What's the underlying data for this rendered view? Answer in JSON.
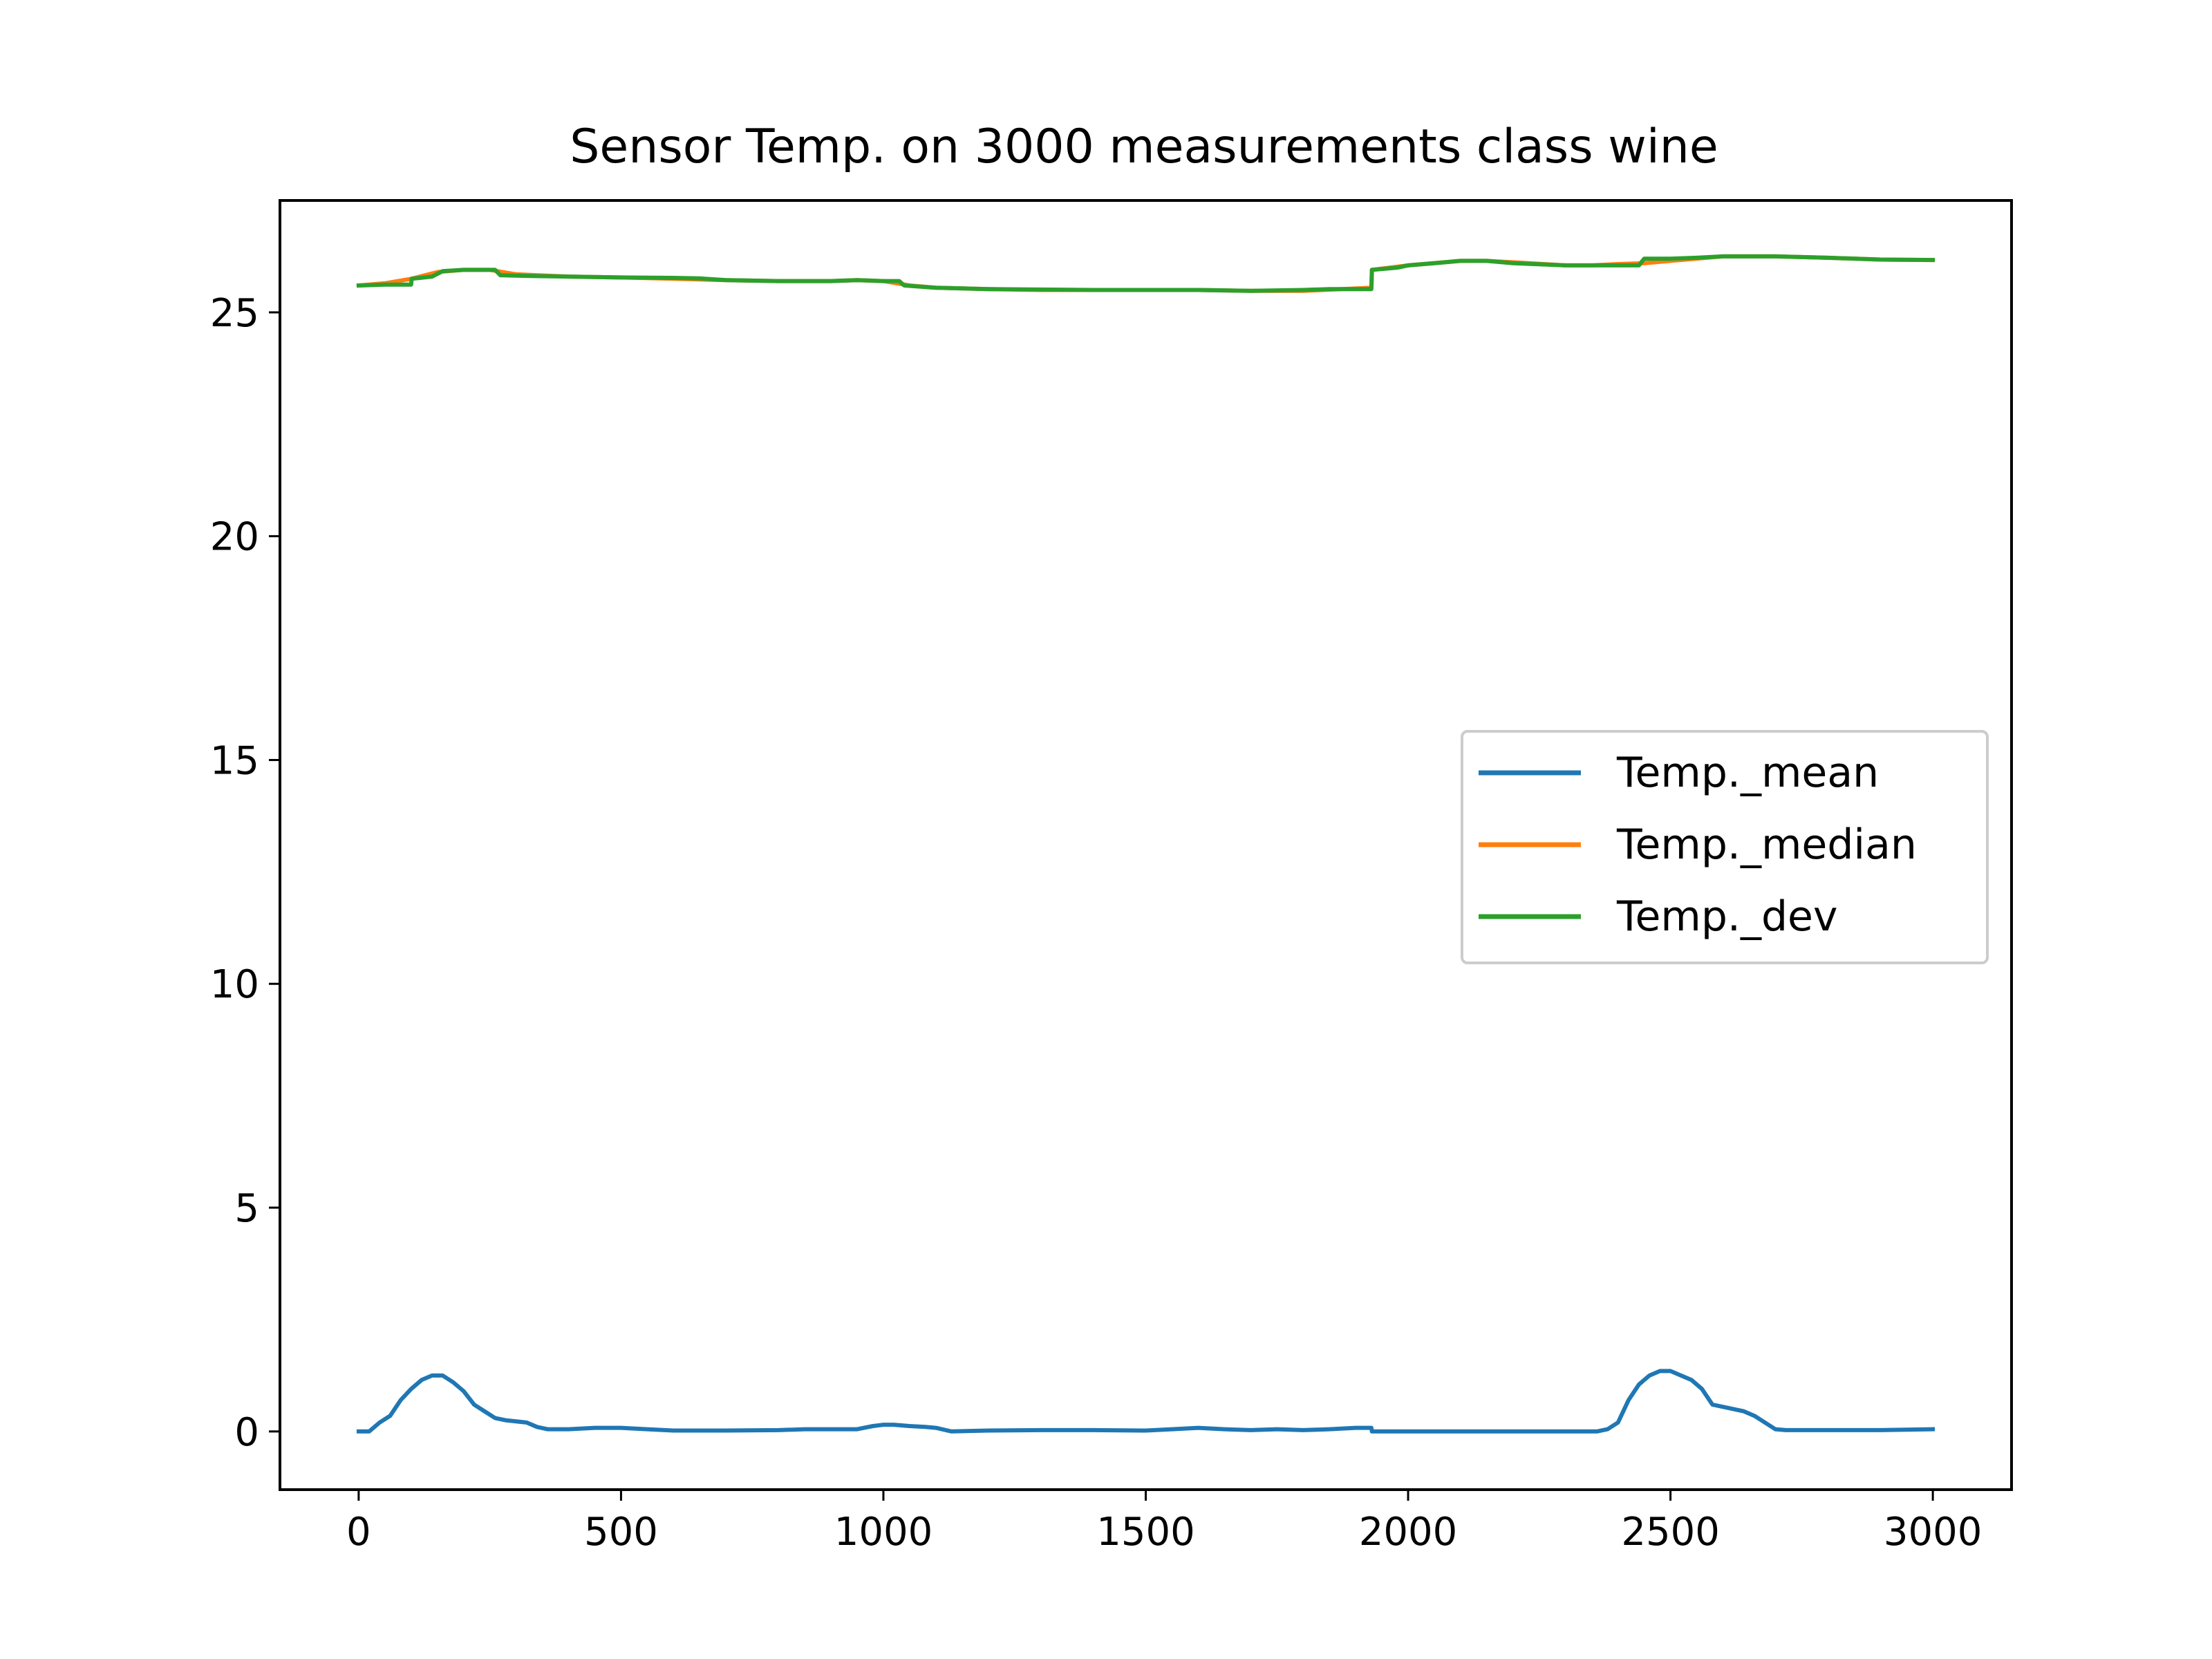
{
  "chart_data": {
    "type": "line",
    "title": "Sensor Temp. on 3000 measurements class wine",
    "xlabel": "",
    "ylabel": "",
    "xlim": [
      -150,
      3150
    ],
    "ylim": [
      -1.3,
      27.5
    ],
    "xticks": [
      0,
      500,
      1000,
      1500,
      2000,
      2500,
      3000
    ],
    "xtick_labels": [
      "0",
      "500",
      "1000",
      "1500",
      "2000",
      "2500",
      "3000"
    ],
    "yticks": [
      0,
      5,
      10,
      15,
      20,
      25
    ],
    "ytick_labels": [
      "0",
      "5",
      "10",
      "15",
      "20",
      "25"
    ],
    "grid": false,
    "legend_position": "center-right",
    "series": [
      {
        "name": "Temp._mean",
        "color": "#1f77b4",
        "x": [
          0,
          20,
          40,
          60,
          80,
          100,
          120,
          140,
          160,
          180,
          200,
          220,
          240,
          260,
          280,
          320,
          340,
          360,
          400,
          450,
          500,
          550,
          600,
          650,
          700,
          800,
          850,
          900,
          950,
          980,
          1000,
          1020,
          1050,
          1080,
          1100,
          1130,
          1200,
          1300,
          1400,
          1500,
          1550,
          1600,
          1650,
          1700,
          1750,
          1800,
          1850,
          1900,
          1930,
          1931,
          2000,
          2100,
          2200,
          2300,
          2360,
          2380,
          2400,
          2420,
          2440,
          2460,
          2480,
          2500,
          2520,
          2540,
          2560,
          2580,
          2600,
          2620,
          2640,
          2660,
          2680,
          2700,
          2720,
          2800,
          2900,
          3000
        ],
        "values": [
          0.0,
          0.0,
          0.2,
          0.35,
          0.7,
          0.95,
          1.15,
          1.25,
          1.25,
          1.1,
          0.9,
          0.6,
          0.45,
          0.3,
          0.25,
          0.2,
          0.1,
          0.05,
          0.05,
          0.08,
          0.08,
          0.05,
          0.02,
          0.02,
          0.02,
          0.03,
          0.05,
          0.05,
          0.05,
          0.12,
          0.15,
          0.15,
          0.12,
          0.1,
          0.08,
          0.0,
          0.02,
          0.03,
          0.03,
          0.02,
          0.05,
          0.08,
          0.05,
          0.03,
          0.05,
          0.03,
          0.05,
          0.08,
          0.08,
          0.0,
          0.0,
          0.0,
          0.0,
          0.0,
          0.0,
          0.05,
          0.2,
          0.7,
          1.05,
          1.25,
          1.35,
          1.35,
          1.25,
          1.15,
          0.95,
          0.6,
          0.55,
          0.5,
          0.45,
          0.35,
          0.2,
          0.05,
          0.03,
          0.03,
          0.03,
          0.05
        ]
      },
      {
        "name": "Temp._median",
        "color": "#ff7f0e",
        "x": [
          0,
          50,
          100,
          150,
          200,
          250,
          300,
          400,
          500,
          600,
          700,
          800,
          900,
          950,
          1000,
          1050,
          1100,
          1200,
          1300,
          1400,
          1500,
          1600,
          1700,
          1800,
          1930,
          1931,
          2000,
          2100,
          2150,
          2200,
          2300,
          2350,
          2400,
          2450,
          2500,
          2600,
          2700,
          2800,
          2900,
          3000
        ],
        "values": [
          25.6,
          25.65,
          25.75,
          25.9,
          25.95,
          25.95,
          25.85,
          25.8,
          25.78,
          25.75,
          25.72,
          25.7,
          25.7,
          25.72,
          25.7,
          25.6,
          25.55,
          25.52,
          25.5,
          25.5,
          25.5,
          25.5,
          25.48,
          25.48,
          25.55,
          25.95,
          26.05,
          26.15,
          26.15,
          26.12,
          26.05,
          26.05,
          26.08,
          26.1,
          26.15,
          26.25,
          26.25,
          26.22,
          26.18,
          26.17
        ]
      },
      {
        "name": "Temp._dev",
        "color": "#2ca02c",
        "x": [
          0,
          50,
          100,
          101,
          140,
          160,
          200,
          260,
          270,
          300,
          400,
          500,
          600,
          650,
          700,
          800,
          900,
          950,
          1000,
          1030,
          1040,
          1100,
          1200,
          1300,
          1400,
          1500,
          1600,
          1700,
          1800,
          1850,
          1930,
          1931,
          1980,
          2000,
          2050,
          2100,
          2150,
          2200,
          2300,
          2350,
          2400,
          2440,
          2450,
          2500,
          2550,
          2600,
          2700,
          2800,
          2900,
          3000
        ],
        "values": [
          25.6,
          25.62,
          25.62,
          25.75,
          25.8,
          25.92,
          25.95,
          25.95,
          25.83,
          25.82,
          25.8,
          25.78,
          25.77,
          25.76,
          25.72,
          25.7,
          25.7,
          25.72,
          25.7,
          25.7,
          25.6,
          25.55,
          25.52,
          25.51,
          25.5,
          25.5,
          25.5,
          25.48,
          25.5,
          25.52,
          25.52,
          25.95,
          26.0,
          26.05,
          26.1,
          26.15,
          26.15,
          26.1,
          26.05,
          26.05,
          26.05,
          26.05,
          26.2,
          26.2,
          26.22,
          26.25,
          26.25,
          26.22,
          26.18,
          26.17
        ]
      }
    ]
  }
}
